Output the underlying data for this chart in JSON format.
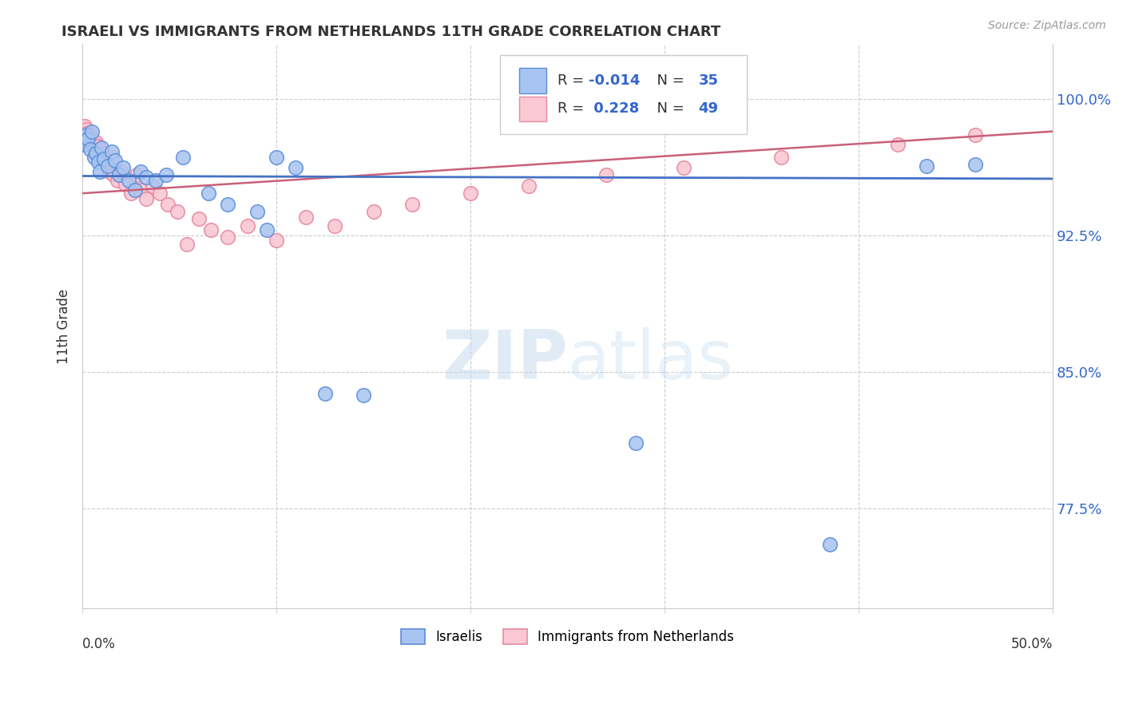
{
  "title": "ISRAELI VS IMMIGRANTS FROM NETHERLANDS 11TH GRADE CORRELATION CHART",
  "source": "Source: ZipAtlas.com",
  "ylabel": "11th Grade",
  "ytick_vals": [
    0.775,
    0.85,
    0.925,
    1.0
  ],
  "ytick_labels": [
    "77.5%",
    "85.0%",
    "92.5%",
    "100.0%"
  ],
  "xrange": [
    0.0,
    0.5
  ],
  "yrange": [
    0.72,
    1.03
  ],
  "bottom_legend_blue": "Israelis",
  "bottom_legend_pink": "Immigrants from Netherlands",
  "watermark": "ZIPatlas",
  "blue_scatter_color": "#A8C4F0",
  "blue_edge_color": "#5B8DD9",
  "pink_scatter_color": "#F9C8D4",
  "pink_edge_color": "#E88AA0",
  "blue_line_color": "#4472C4",
  "pink_line_color": "#C9607A",
  "R_blue": -0.014,
  "N_blue": 35,
  "R_pink": 0.228,
  "N_pink": 49,
  "blue_line_y0": 0.9575,
  "blue_line_y1": 0.956,
  "pink_line_y0": 0.948,
  "pink_line_y1": 0.982,
  "israelis_x": [
    0.001,
    0.002,
    0.003,
    0.004,
    0.005,
    0.006,
    0.007,
    0.008,
    0.009,
    0.01,
    0.011,
    0.013,
    0.015,
    0.017,
    0.019,
    0.021,
    0.024,
    0.027,
    0.03,
    0.033,
    0.038,
    0.043,
    0.052,
    0.065,
    0.075,
    0.09,
    0.095,
    0.1,
    0.11,
    0.125,
    0.145,
    0.285,
    0.385,
    0.435,
    0.46
  ],
  "israelis_y": [
    0.975,
    0.98,
    0.978,
    0.972,
    0.982,
    0.968,
    0.97,
    0.965,
    0.96,
    0.973,
    0.967,
    0.963,
    0.971,
    0.966,
    0.958,
    0.962,
    0.955,
    0.95,
    0.96,
    0.957,
    0.955,
    0.958,
    0.968,
    0.948,
    0.942,
    0.938,
    0.928,
    0.968,
    0.962,
    0.838,
    0.837,
    0.811,
    0.755,
    0.963,
    0.964
  ],
  "immigrants_x": [
    0.001,
    0.002,
    0.002,
    0.003,
    0.003,
    0.004,
    0.004,
    0.005,
    0.006,
    0.007,
    0.007,
    0.008,
    0.009,
    0.009,
    0.01,
    0.011,
    0.012,
    0.013,
    0.014,
    0.015,
    0.016,
    0.018,
    0.02,
    0.022,
    0.025,
    0.028,
    0.03,
    0.033,
    0.036,
    0.04,
    0.044,
    0.049,
    0.054,
    0.06,
    0.066,
    0.075,
    0.085,
    0.1,
    0.115,
    0.13,
    0.15,
    0.17,
    0.2,
    0.23,
    0.27,
    0.31,
    0.36,
    0.42,
    0.46
  ],
  "immigrants_y": [
    0.985,
    0.983,
    0.981,
    0.979,
    0.977,
    0.98,
    0.975,
    0.978,
    0.973,
    0.976,
    0.971,
    0.974,
    0.969,
    0.972,
    0.967,
    0.97,
    0.965,
    0.963,
    0.96,
    0.968,
    0.958,
    0.955,
    0.96,
    0.953,
    0.948,
    0.958,
    0.95,
    0.945,
    0.952,
    0.948,
    0.942,
    0.938,
    0.92,
    0.934,
    0.928,
    0.924,
    0.93,
    0.922,
    0.935,
    0.93,
    0.938,
    0.942,
    0.948,
    0.952,
    0.958,
    0.962,
    0.968,
    0.975,
    0.98
  ]
}
